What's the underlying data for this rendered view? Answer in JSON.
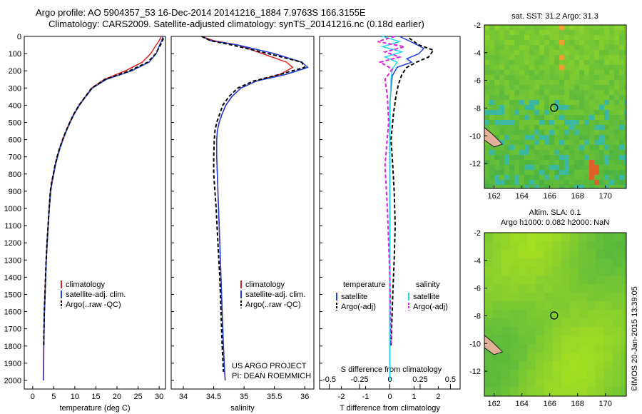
{
  "header": {
    "title_line1": "Argo profile: AO 5904357_53 16-Dec-2014 20141216_1884 7.9763S 166.3155E",
    "title_line2": "Climatology: CARS2009. Satellite-adjusted climatology: synTS_20141216.nc (0.18d earlier)"
  },
  "credit": "©IMOS 20-Jan-2015 13:39:05",
  "project": {
    "line1": "US ARGO PROJECT",
    "line2": "PI: DEAN ROEMMICH"
  },
  "depth_ticks": [
    0,
    100,
    200,
    300,
    400,
    500,
    600,
    700,
    800,
    900,
    1000,
    1100,
    1200,
    1300,
    1400,
    1500,
    1600,
    1700,
    1800,
    1900,
    2000
  ],
  "colors": {
    "climatology": "#e02020",
    "satellite": "#2040e0",
    "argo": "#000000",
    "sat_s": "#20d8e8",
    "argo_s": "#e020e0"
  },
  "chart_data": [
    {
      "type": "line",
      "xlabel": "temperature (deg C)",
      "xlim": [
        -2,
        31.5
      ],
      "xticks": [
        0,
        5,
        10,
        15,
        20,
        25,
        30
      ],
      "ylim": [
        2050,
        0
      ],
      "legend": [
        "climatology",
        "satellite-adj. clim.",
        "Argo(..raw -QC)"
      ],
      "series": [
        {
          "name": "climatology",
          "color": "#e02020",
          "dash": "",
          "x": [
            30.5,
            30.0,
            29.3,
            28.0,
            26.0,
            22.0,
            17.0,
            14.0,
            12.5,
            11.0,
            9.8,
            8.8,
            7.9,
            7.1,
            6.4,
            5.8,
            5.3,
            4.9,
            4.5,
            4.2,
            3.9,
            3.65,
            3.4,
            3.2,
            3.05,
            2.9,
            2.75,
            2.6,
            2.5
          ],
          "y": [
            0,
            25,
            50,
            100,
            150,
            200,
            250,
            300,
            350,
            400,
            450,
            500,
            550,
            600,
            650,
            700,
            750,
            800,
            850,
            900,
            1000,
            1100,
            1200,
            1300,
            1400,
            1500,
            1600,
            1800,
            2000
          ]
        },
        {
          "name": "satellite-adj. clim.",
          "color": "#2040e0",
          "dash": "",
          "x": [
            30.9,
            30.6,
            30.1,
            29.3,
            27.6,
            23.5,
            17.5,
            14.2,
            12.6,
            11.1,
            9.9,
            8.9,
            8.0,
            7.2,
            6.5,
            5.9,
            5.4,
            5.0,
            4.6,
            4.3,
            3.95,
            3.7,
            3.45,
            3.25,
            3.1,
            2.95,
            2.8,
            2.65,
            2.55
          ],
          "y": [
            0,
            25,
            50,
            100,
            150,
            200,
            250,
            300,
            350,
            400,
            450,
            500,
            550,
            600,
            650,
            700,
            750,
            800,
            850,
            900,
            1000,
            1100,
            1200,
            1300,
            1400,
            1500,
            1600,
            1800,
            2000
          ]
        },
        {
          "name": "Argo(..raw -QC)",
          "color": "#000000",
          "dash": "5,3",
          "x": [
            31.0,
            30.8,
            30.3,
            29.2,
            27.3,
            23.0,
            17.2,
            14.0,
            12.5,
            11.0,
            9.8,
            8.8,
            7.9,
            7.1,
            6.4,
            5.8,
            5.3,
            4.9,
            4.5,
            4.2,
            3.9,
            3.65,
            3.4,
            3.2,
            3.05,
            2.9,
            2.75,
            2.6
          ],
          "y": [
            10,
            25,
            50,
            100,
            150,
            200,
            250,
            300,
            350,
            400,
            450,
            500,
            550,
            600,
            650,
            700,
            750,
            800,
            850,
            900,
            1000,
            1100,
            1200,
            1300,
            1400,
            1500,
            1600,
            1800
          ]
        }
      ]
    },
    {
      "type": "line",
      "xlabel": "salinity",
      "xlim": [
        33.8,
        36.15
      ],
      "xticks": [
        34,
        34.5,
        35,
        35.5,
        36
      ],
      "ylim": [
        2050,
        0
      ],
      "legend": [
        "climatology",
        "satellite-adj. clim.",
        "Argo(..raw -QC)"
      ],
      "series": [
        {
          "name": "climatology",
          "color": "#e02020",
          "dash": "",
          "x": [
            34.3,
            34.5,
            34.9,
            35.3,
            35.7,
            35.8,
            35.6,
            35.2,
            34.95,
            34.8,
            34.7,
            34.64,
            34.59,
            34.56,
            34.55,
            34.55,
            34.56,
            34.57,
            34.58,
            34.6,
            34.62,
            34.64,
            34.66,
            34.68,
            34.69
          ],
          "y": [
            0,
            25,
            50,
            100,
            150,
            180,
            220,
            260,
            300,
            350,
            400,
            450,
            500,
            550,
            600,
            700,
            800,
            900,
            1000,
            1200,
            1400,
            1600,
            1800,
            1950,
            2000
          ]
        },
        {
          "name": "satellite-adj. clim.",
          "color": "#2040e0",
          "dash": "",
          "x": [
            34.3,
            34.45,
            34.9,
            35.5,
            35.95,
            36.05,
            35.7,
            35.2,
            34.95,
            34.8,
            34.7,
            34.64,
            34.59,
            34.56,
            34.55,
            34.55,
            34.56,
            34.57,
            34.58,
            34.6,
            34.62,
            34.64,
            34.66,
            34.68,
            34.69
          ],
          "y": [
            0,
            25,
            50,
            100,
            150,
            180,
            220,
            260,
            300,
            350,
            400,
            450,
            500,
            550,
            600,
            700,
            800,
            900,
            1000,
            1200,
            1400,
            1600,
            1800,
            1950,
            2000
          ]
        },
        {
          "name": "Argo(..raw -QC)",
          "color": "#000000",
          "dash": "5,3",
          "x": [
            34.3,
            34.45,
            34.8,
            35.4,
            35.95,
            36.0,
            35.6,
            35.15,
            34.9,
            34.75,
            34.65,
            34.6,
            34.55,
            34.52,
            34.51,
            34.5,
            34.5,
            34.52,
            34.54,
            34.57,
            34.6,
            34.62,
            34.64,
            34.66
          ],
          "y": [
            0,
            25,
            50,
            100,
            150,
            180,
            220,
            260,
            300,
            350,
            400,
            450,
            500,
            550,
            600,
            700,
            800,
            900,
            1000,
            1200,
            1400,
            1600,
            1800,
            1950
          ]
        }
      ]
    },
    {
      "type": "line",
      "xlabel": "T difference from climatology",
      "top_label": "S difference from climatology",
      "xlim": [
        -2.9,
        2.9
      ],
      "xticks": [
        -2,
        -1,
        0,
        1,
        2
      ],
      "top_ticks": [
        -0.5,
        -0.25,
        0,
        0.25,
        0.5
      ],
      "ylim": [
        2050,
        0
      ],
      "legend_headers": [
        "temperature",
        "salinity"
      ],
      "legend": [
        "satellite",
        "Argo(-adj)",
        "satellite",
        "Argo(-adj)"
      ],
      "series": [
        {
          "name": "satellite",
          "color": "#2040e0",
          "dash": "",
          "x": [
            0.4,
            1.0,
            1.4,
            1.2,
            0.7,
            0.9,
            0.3,
            0.1,
            0.05,
            0,
            0,
            0,
            0,
            0,
            0
          ],
          "y": [
            0,
            40,
            70,
            100,
            130,
            150,
            180,
            230,
            300,
            400,
            600,
            900,
            1300,
            1700,
            2000
          ]
        },
        {
          "name": "Argo(-adj)",
          "color": "#000000",
          "dash": "5,3",
          "x": [
            0.8,
            1.2,
            1.8,
            1.6,
            1.1,
            0.7,
            0.5,
            0.35,
            0.25,
            0.15,
            0.05,
            0.12,
            0.18,
            0.22,
            0.18,
            0.12,
            0.05
          ],
          "y": [
            10,
            50,
            80,
            120,
            150,
            180,
            220,
            280,
            350,
            450,
            600,
            750,
            900,
            1100,
            1300,
            1500,
            1800
          ]
        },
        {
          "name": "satellite",
          "color": "#20d8e8",
          "dash": "",
          "x": [
            -0.3,
            0.4,
            -0.3,
            0.5,
            -0.2,
            0.3,
            0.1,
            0.05,
            0.02,
            0,
            0,
            0,
            0,
            0
          ],
          "y": [
            0,
            30,
            60,
            90,
            120,
            150,
            190,
            250,
            350,
            500,
            800,
            1200,
            1600,
            2000
          ]
        },
        {
          "name": "Argo(-adj)",
          "color": "#e020e0",
          "dash": "5,3",
          "x": [
            0.2,
            -0.5,
            0.6,
            -0.2,
            0.4,
            -0.4,
            0.1,
            -0.2,
            -0.1,
            -0.05,
            -0.2,
            -0.1,
            0,
            0.05
          ],
          "y": [
            0,
            30,
            60,
            90,
            120,
            150,
            190,
            250,
            350,
            500,
            750,
            1000,
            1400,
            1800
          ]
        }
      ]
    },
    {
      "type": "heatmap",
      "title": "sat. SST: 31.2 Argo: 31.3",
      "xlim": [
        161.3,
        171.5
      ],
      "ylim": [
        -13.8,
        -2
      ],
      "xticks": [
        162,
        164,
        166,
        168,
        170
      ],
      "yticks": [
        -2,
        -4,
        -6,
        -8,
        -10,
        -12
      ],
      "marker": [
        166.3155,
        -7.9763
      ]
    },
    {
      "type": "heatmap",
      "title_line1": "Altim. SLA: 0.1",
      "title_line2": "Argo h1000: 0.082 h2000: NaN",
      "xlim": [
        161.3,
        171.5
      ],
      "ylim": [
        -13.8,
        -2
      ],
      "xticks": [
        162,
        164,
        166,
        168,
        170
      ],
      "yticks": [
        -2,
        -4,
        -6,
        -8,
        -10,
        -12
      ],
      "marker": [
        166.3155,
        -7.9763
      ]
    }
  ]
}
